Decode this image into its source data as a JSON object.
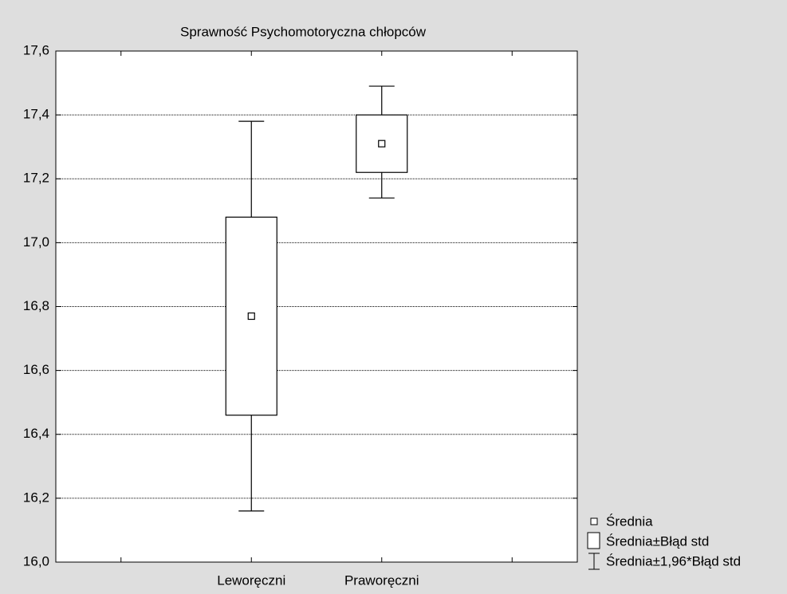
{
  "chart_data": {
    "type": "box",
    "title": "Sprawność Psychomotoryczna chłopców",
    "categories": [
      null,
      "Leworęczni",
      "Praworęczni",
      null
    ],
    "mean": [
      null,
      16.77,
      17.31,
      null
    ],
    "box_low": [
      null,
      16.46,
      17.22,
      null
    ],
    "box_high": [
      null,
      17.08,
      17.4,
      null
    ],
    "whisker_low": [
      null,
      16.16,
      17.14,
      null
    ],
    "whisker_high": [
      null,
      17.38,
      17.49,
      null
    ],
    "legend": [
      "Średnia",
      "Średnia±Błąd std",
      "Średnia±1,96*Błąd std"
    ],
    "ylim": [
      16.0,
      17.6
    ],
    "yticks": [
      {
        "value": 16.0,
        "label": "16,0"
      },
      {
        "value": 16.2,
        "label": "16,2"
      },
      {
        "value": 16.4,
        "label": "16,4"
      },
      {
        "value": 16.6,
        "label": "16,6"
      },
      {
        "value": 16.8,
        "label": "16,8"
      },
      {
        "value": 17.0,
        "label": "17,0"
      },
      {
        "value": 17.2,
        "label": "17,2"
      },
      {
        "value": 17.4,
        "label": "17,4"
      },
      {
        "value": 17.6,
        "label": "17,6"
      }
    ],
    "grid": true
  }
}
